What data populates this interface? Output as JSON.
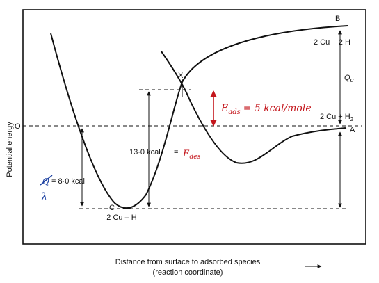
{
  "axes": {
    "ylabel": "Potential energy",
    "xlabel_line1": "Distance from surface to adsorbed species",
    "xlabel_line2": "(reaction coordinate)",
    "origin_label": "O"
  },
  "points": {
    "B": "B",
    "A": "A",
    "X": "X",
    "C": "C"
  },
  "labels": {
    "atoms_label": "2 Cu + 2 H",
    "molecule_label": "2 Cu + H",
    "molecule_sub": "2",
    "q_alpha": "Q",
    "q_alpha_sub": "α",
    "chemisorbed_label": "2 Cu – H",
    "e_des_value": "13·0 kcal",
    "e_des_eq": "=",
    "e_des_sym": "E",
    "e_des_sub": "des",
    "q_value": "= 8·0 kcal",
    "q_struck": "Q",
    "lambda": "λ"
  },
  "annotations": {
    "e_ads_sym": "E",
    "e_ads_sub": "ads",
    "e_ads_value": "=  5  kcal/mole"
  },
  "colors": {
    "ink": "#111111",
    "annotation_red": "#c4161c",
    "annotation_blue": "#1a3fa0"
  }
}
